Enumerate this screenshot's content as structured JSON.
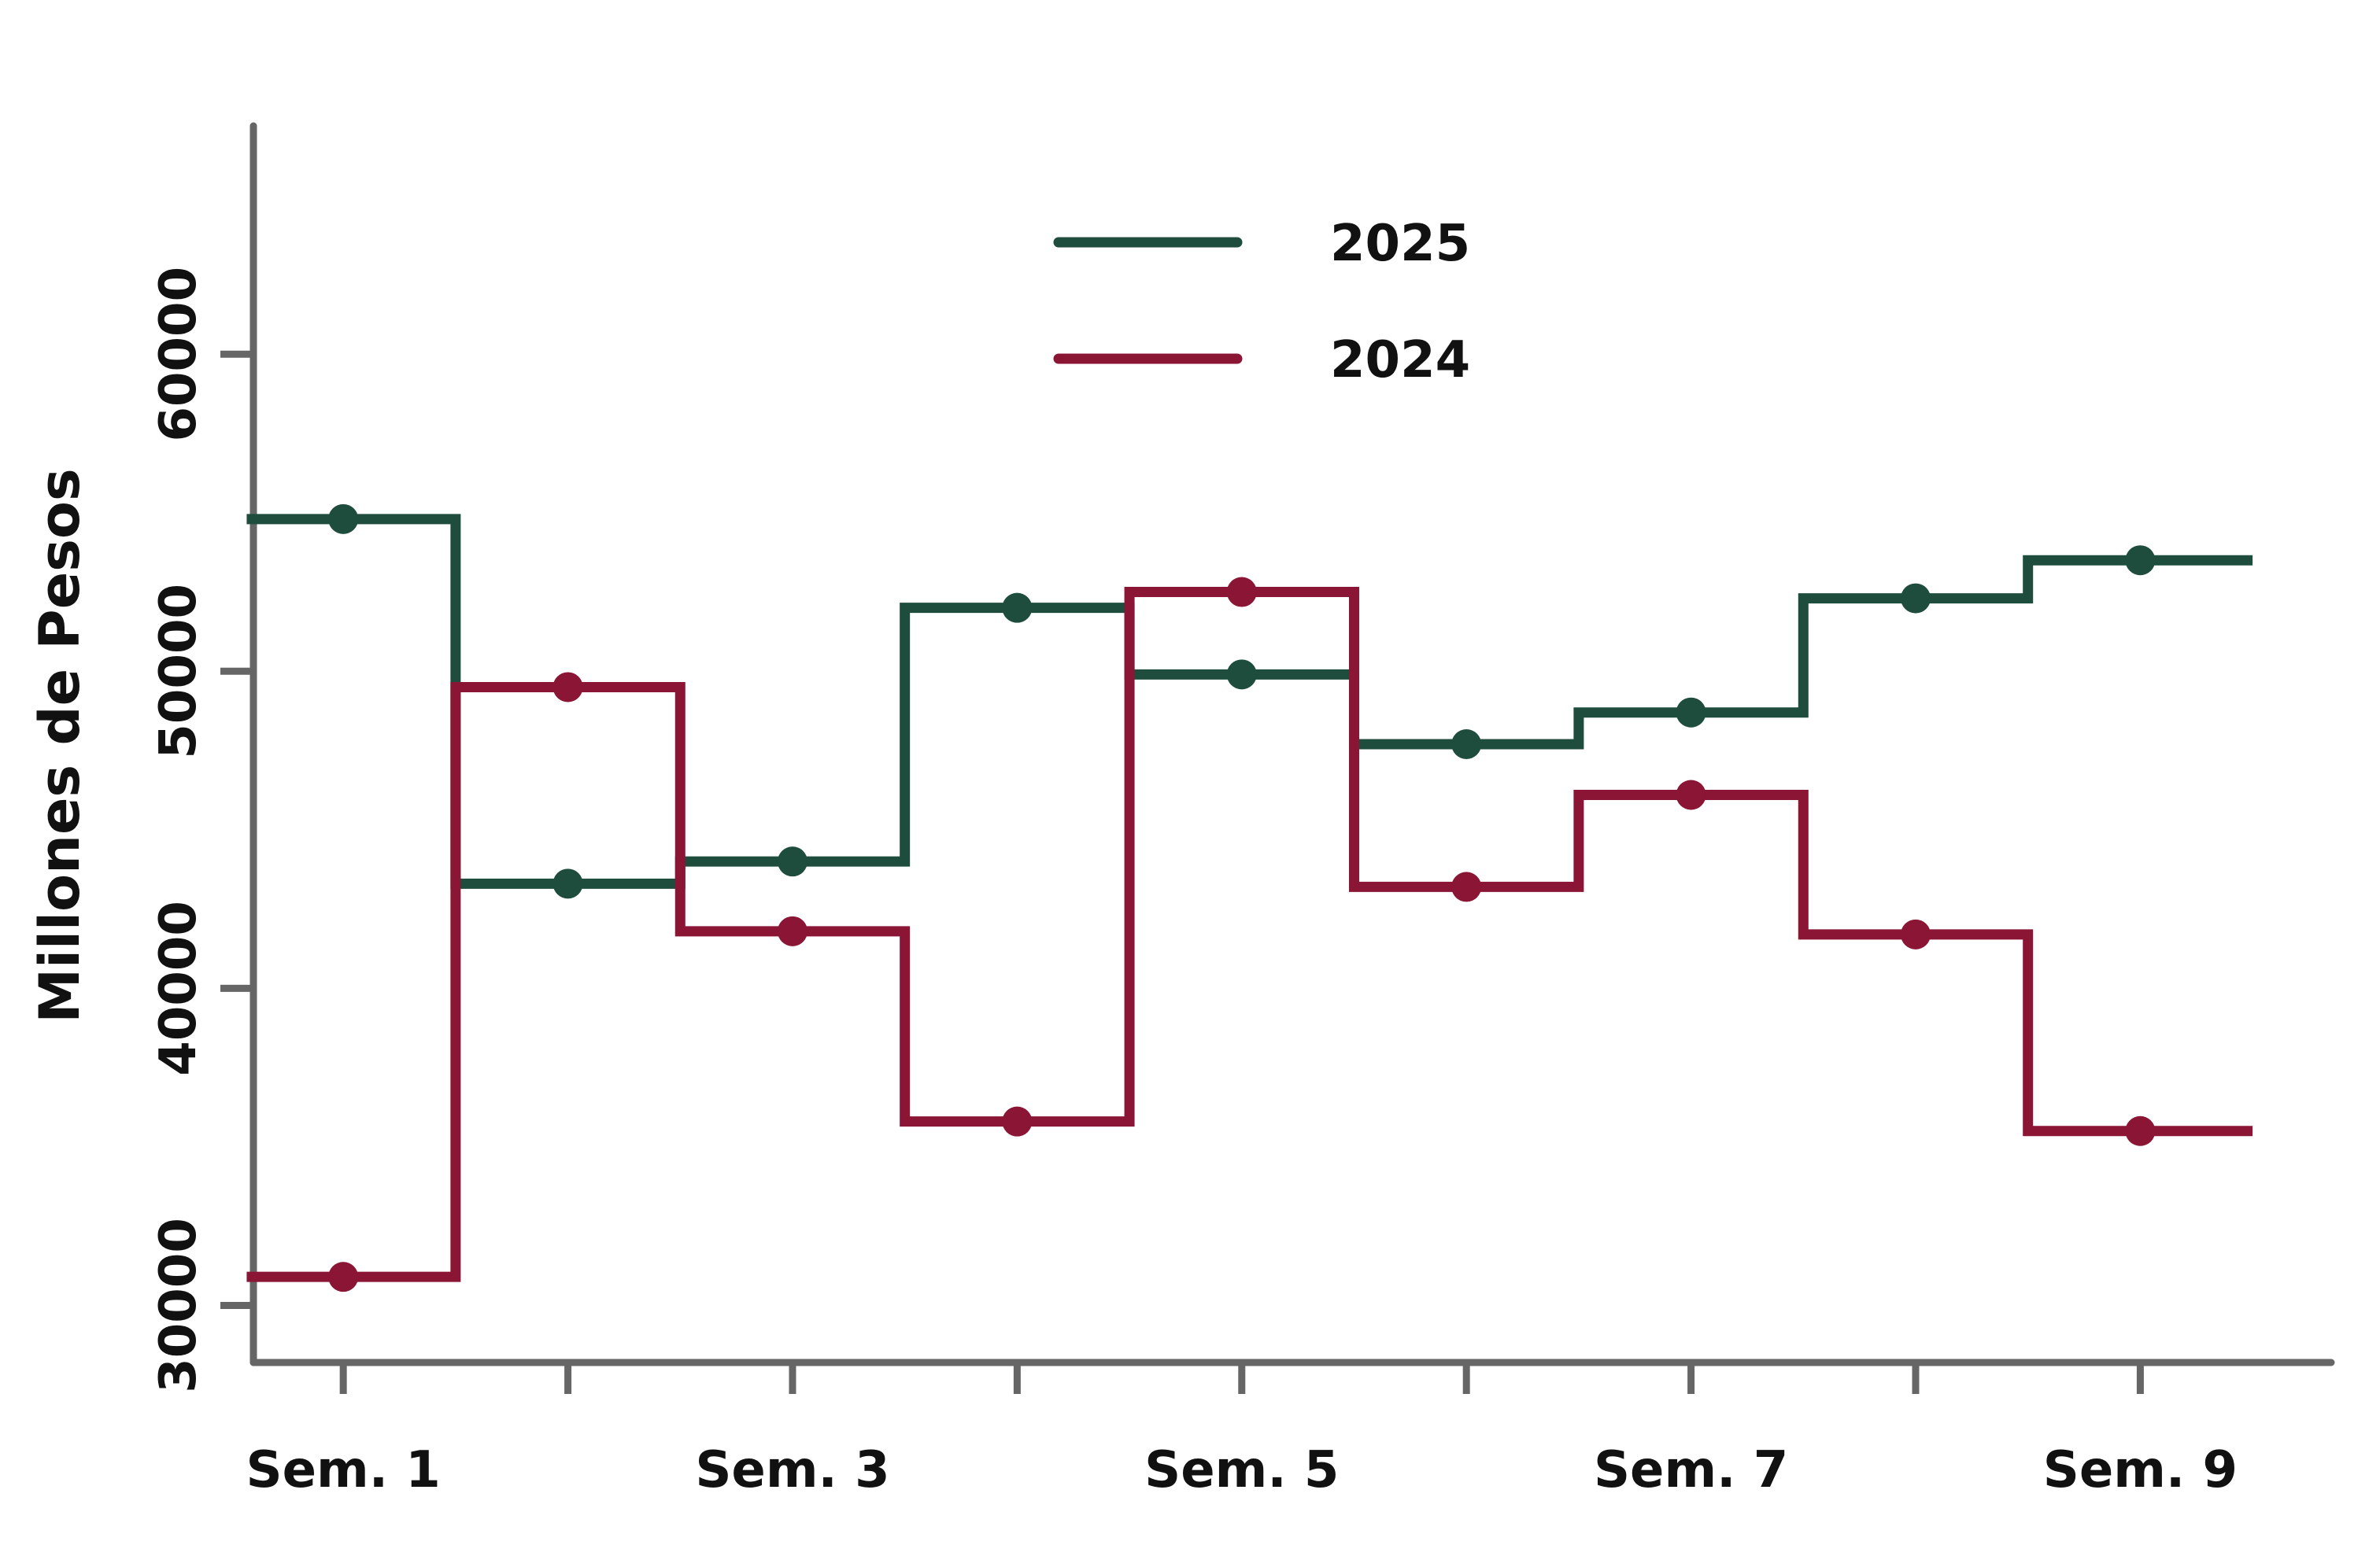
{
  "chart_data": {
    "type": "line",
    "step": "mid",
    "ylabel": "Millones de Pesos",
    "xlabel": "",
    "categories": [
      "Sem. 1",
      "",
      "Sem. 3",
      "",
      "Sem. 5",
      "",
      "Sem. 7",
      "",
      "Sem. 9"
    ],
    "x": [
      1,
      2,
      3,
      4,
      5,
      6,
      7,
      8,
      9
    ],
    "xlim": [
      0.6,
      9.85
    ],
    "ylim": [
      28200,
      67200
    ],
    "yticks": [
      30000,
      40000,
      50000,
      60000
    ],
    "ytick_labels": [
      "30000",
      "40000",
      "50000",
      "60000"
    ],
    "grid": false,
    "legend_position": "top-center",
    "series": [
      {
        "name": "2025",
        "color": "#1e4d3d",
        "values": [
          54800,
          43300,
          44000,
          52000,
          49900,
          47700,
          48700,
          52300,
          53500
        ]
      },
      {
        "name": "2024",
        "color": "#8b1535",
        "values": [
          30900,
          49500,
          41800,
          35800,
          52500,
          43200,
          46100,
          41700,
          35500
        ]
      }
    ],
    "axis_color": "#666666"
  }
}
